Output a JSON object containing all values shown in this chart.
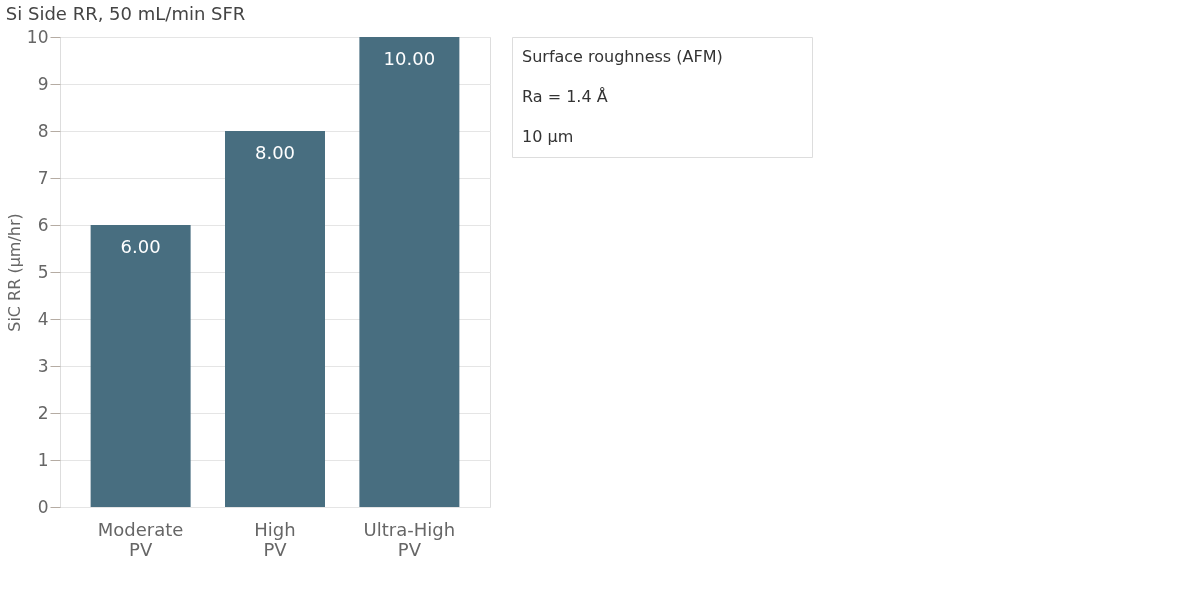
{
  "chart_data": {
    "type": "bar",
    "title": "Si Side RR, 50 mL/min SFR",
    "ylabel": "SiC RR (µm/hr)",
    "categories": [
      "Moderate\nPV",
      "High\nPV",
      "Ultra-High\nPV"
    ],
    "values": [
      6.0,
      8.0,
      10.0
    ],
    "value_labels": [
      "6.00",
      "8.00",
      "10.00"
    ],
    "color": "#486e80",
    "ylim": [
      0,
      10
    ],
    "yticks": [
      0,
      1,
      2,
      3,
      4,
      5,
      6,
      7,
      8,
      9,
      10
    ],
    "grid": "y",
    "annotations": [
      "Surface roughness (AFM)",
      "Ra = 1.4 Å",
      "10 µm"
    ]
  }
}
